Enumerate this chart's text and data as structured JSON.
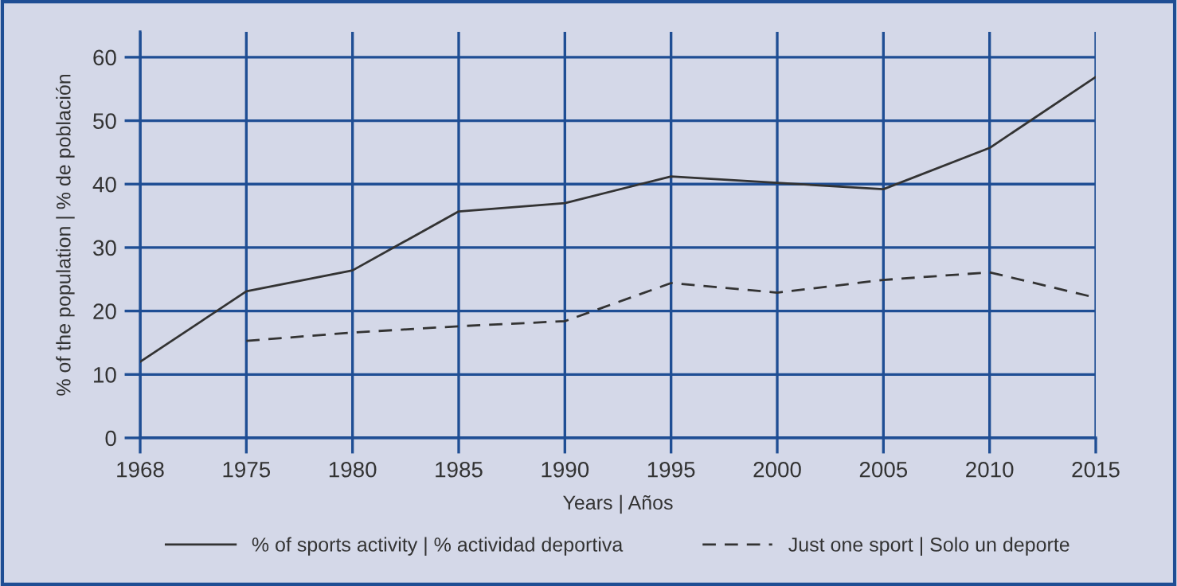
{
  "chart_data": {
    "type": "line",
    "xlabel": "Years | Años",
    "ylabel": "% of the population | % de población",
    "categories": [
      "1968",
      "1975",
      "1980",
      "1985",
      "1990",
      "1995",
      "2000",
      "2005",
      "2010",
      "2015"
    ],
    "series": [
      {
        "name": "% of sports activity | % actividad deportiva",
        "color": "#333333",
        "line_style": "solid",
        "values": [
          12,
          23.1,
          26.4,
          35.7,
          37,
          41.2,
          40.2,
          39.2,
          45.7,
          56.9
        ]
      },
      {
        "name": "Just one sport | Solo un deporte",
        "color": "#333333",
        "line_style": "dashed",
        "values": [
          null,
          15.3,
          16.6,
          17.6,
          18.4,
          24.4,
          22.9,
          24.9,
          26.1,
          22.1
        ]
      }
    ],
    "ylim": [
      0,
      64
    ],
    "yticks": [
      0,
      10,
      20,
      30,
      40,
      50,
      60
    ],
    "grid": true,
    "legend": "bottom",
    "marker": "none"
  }
}
